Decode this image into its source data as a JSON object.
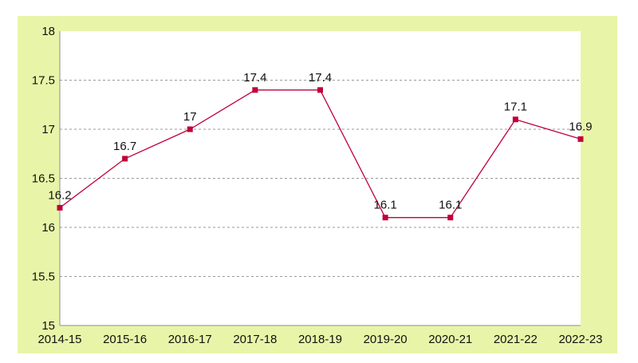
{
  "chart_data": {
    "type": "line",
    "title": "",
    "xlabel": "",
    "ylabel": "",
    "categories": [
      "2014-15",
      "2015-16",
      "2016-17",
      "2017-18",
      "2018-19",
      "2019-20",
      "2020-21",
      "2021-22",
      "2022-23"
    ],
    "series": [
      {
        "values": [
          16.2,
          16.7,
          17.0,
          17.4,
          17.4,
          16.1,
          16.1,
          17.1,
          16.9
        ],
        "labels": [
          "16.2",
          "16.7",
          "17",
          "17.4",
          "17.4",
          "16.1",
          "16.1",
          "17.1",
          "16.9"
        ],
        "color": "#c0003a",
        "marker": "square"
      }
    ],
    "yticks": [
      "15",
      "15.5",
      "16",
      "16.5",
      "17",
      "17.5",
      "18"
    ],
    "ylim": [
      15,
      18
    ],
    "grid": "horizontal dashed",
    "legend": "none",
    "colors": {
      "background": "#e8f5a8",
      "plot_area": "#ffffff",
      "gridline": "#9a9a9a",
      "line": "#c0003a"
    }
  }
}
